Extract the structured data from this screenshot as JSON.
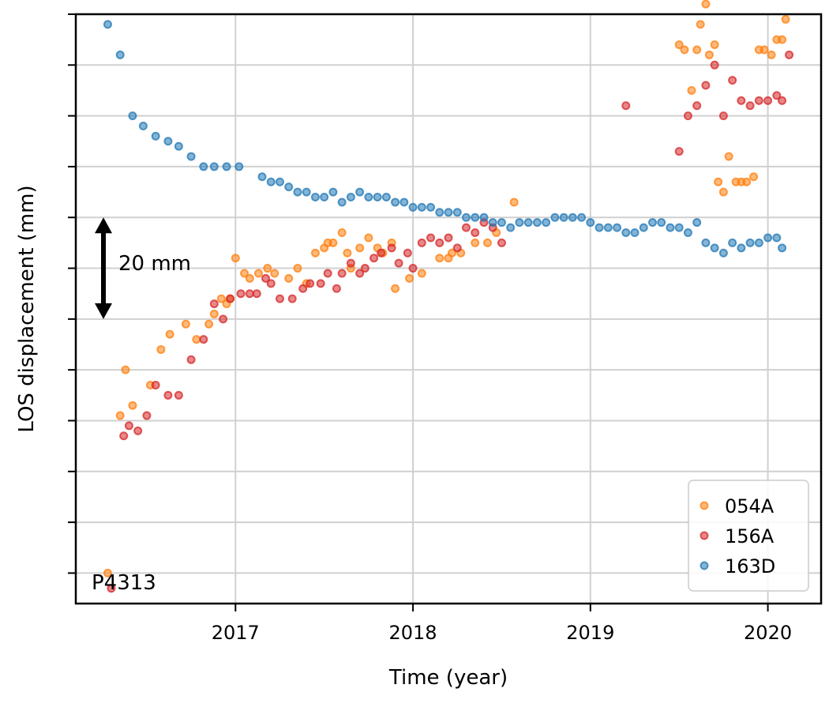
{
  "chart_data": {
    "type": "scatter",
    "xlabel": "Time (year)",
    "ylabel": "LOS displacement (mm)",
    "xlim": [
      2016.1,
      2020.3
    ],
    "ylim": [
      -66,
      50
    ],
    "x_ticks": [
      2017,
      2018,
      2019,
      2020
    ],
    "x_tick_labels": [
      "2017",
      "2018",
      "2019",
      "2020"
    ],
    "y_ticks": [
      -60,
      -50,
      -40,
      -30,
      -20,
      -10,
      0,
      10,
      20,
      30,
      40,
      50
    ],
    "grid": true,
    "legend_position": "lower-right",
    "colors": {
      "054A": "#ff7f0e",
      "156A": "#d62728",
      "163D": "#1f77b4"
    },
    "annotations": {
      "scale_bar_label": "20 mm",
      "scale_bar_mm": 20,
      "station_label": "P4313"
    },
    "series": [
      {
        "name": "054A",
        "x": [
          2016.28,
          2016.35,
          2016.42,
          2016.38,
          2016.52,
          2016.58,
          2016.63,
          2016.72,
          2016.78,
          2016.85,
          2016.88,
          2016.92,
          2016.95,
          2016.97,
          2017.0,
          2017.05,
          2017.08,
          2017.13,
          2017.18,
          2017.22,
          2017.3,
          2017.35,
          2017.4,
          2017.45,
          2017.5,
          2017.52,
          2017.55,
          2017.6,
          2017.63,
          2017.65,
          2017.7,
          2017.75,
          2017.8,
          2017.83,
          2017.88,
          2017.9,
          2017.98,
          2018.05,
          2018.15,
          2018.2,
          2018.22,
          2018.27,
          2018.35,
          2018.42,
          2018.47,
          2018.57,
          2019.5,
          2019.53,
          2019.57,
          2019.6,
          2019.62,
          2019.65,
          2019.67,
          2019.7,
          2019.72,
          2019.75,
          2019.78,
          2019.82,
          2019.85,
          2019.88,
          2019.92,
          2019.95,
          2019.98,
          2020.02,
          2020.05,
          2020.08,
          2020.1
        ],
        "y": [
          -60,
          -29,
          -27,
          -20,
          -23,
          -16,
          -13,
          -11,
          -14,
          -11,
          -9,
          -6,
          -7,
          -6,
          2,
          -1,
          -2,
          -1,
          0,
          -1,
          -2,
          0,
          -3,
          3,
          4,
          5,
          5,
          7,
          3,
          0,
          4,
          6,
          4,
          3,
          5,
          -4,
          -2,
          -1,
          2,
          2,
          3,
          3,
          5,
          5,
          7,
          13,
          44,
          43,
          35,
          43,
          48,
          52,
          42,
          44,
          17,
          15,
          22,
          17,
          17,
          17,
          18,
          43,
          43,
          42,
          45,
          45,
          49
        ],
        "_note_values_are_read_from_plot": true
      },
      {
        "name": "156A",
        "x": [
          2016.3,
          2016.37,
          2016.4,
          2016.45,
          2016.5,
          2016.55,
          2016.62,
          2016.68,
          2016.75,
          2016.82,
          2016.88,
          2016.93,
          2016.97,
          2017.03,
          2017.08,
          2017.12,
          2017.17,
          2017.2,
          2017.25,
          2017.32,
          2017.38,
          2017.42,
          2017.48,
          2017.52,
          2017.57,
          2017.6,
          2017.65,
          2017.7,
          2017.73,
          2017.78,
          2017.82,
          2017.88,
          2017.92,
          2017.97,
          2018.0,
          2018.05,
          2018.1,
          2018.15,
          2018.2,
          2018.25,
          2018.3,
          2018.35,
          2018.4,
          2018.45,
          2018.5,
          2019.2,
          2019.5,
          2019.55,
          2019.6,
          2019.65,
          2019.7,
          2019.75,
          2019.8,
          2019.85,
          2019.9,
          2019.95,
          2020.0,
          2020.05,
          2020.08,
          2020.12
        ],
        "y": [
          -63,
          -33,
          -31,
          -32,
          -29,
          -23,
          -25,
          -25,
          -18,
          -14,
          -7,
          -10,
          -6,
          -5,
          -5,
          -5,
          -2,
          -3,
          -6,
          -6,
          -4,
          -3,
          -3,
          -1,
          -4,
          -1,
          1,
          -1,
          0,
          2,
          3,
          4,
          1,
          3,
          0,
          5,
          6,
          5,
          6,
          4,
          8,
          7,
          9,
          8,
          5,
          32,
          23,
          30,
          32,
          36,
          40,
          30,
          37,
          33,
          32,
          33,
          33,
          34,
          33,
          42
        ],
        "_note_values_are_read_from_plot": true
      },
      {
        "name": "163D",
        "x": [
          2016.28,
          2016.35,
          2016.42,
          2016.48,
          2016.55,
          2016.62,
          2016.68,
          2016.75,
          2016.82,
          2016.88,
          2016.95,
          2017.02,
          2017.15,
          2017.2,
          2017.25,
          2017.3,
          2017.35,
          2017.4,
          2017.45,
          2017.5,
          2017.55,
          2017.6,
          2017.65,
          2017.7,
          2017.75,
          2017.8,
          2017.85,
          2017.9,
          2017.95,
          2018.0,
          2018.05,
          2018.1,
          2018.15,
          2018.2,
          2018.25,
          2018.3,
          2018.35,
          2018.4,
          2018.45,
          2018.5,
          2018.55,
          2018.6,
          2018.65,
          2018.7,
          2018.75,
          2018.8,
          2018.85,
          2018.9,
          2018.95,
          2019.0,
          2019.05,
          2019.1,
          2019.15,
          2019.2,
          2019.25,
          2019.3,
          2019.35,
          2019.4,
          2019.45,
          2019.5,
          2019.55,
          2019.6,
          2019.65,
          2019.7,
          2019.75,
          2019.8,
          2019.85,
          2019.9,
          2019.95,
          2020.0,
          2020.05,
          2020.08
        ],
        "y": [
          48,
          42,
          30,
          28,
          26,
          25,
          24,
          22,
          20,
          20,
          20,
          20,
          18,
          17,
          17,
          16,
          15,
          15,
          14,
          14,
          15,
          13,
          14,
          15,
          14,
          14,
          14,
          13,
          13,
          12,
          12,
          12,
          11,
          11,
          11,
          10,
          10,
          10,
          9,
          9,
          8,
          9,
          9,
          9,
          9,
          10,
          10,
          10,
          10,
          9,
          8,
          8,
          8,
          7,
          7,
          8,
          9,
          9,
          8,
          8,
          7,
          9,
          5,
          4,
          3,
          5,
          4,
          5,
          5,
          6,
          6,
          4
        ],
        "_note_values_are_read_from_plot": true
      }
    ]
  }
}
